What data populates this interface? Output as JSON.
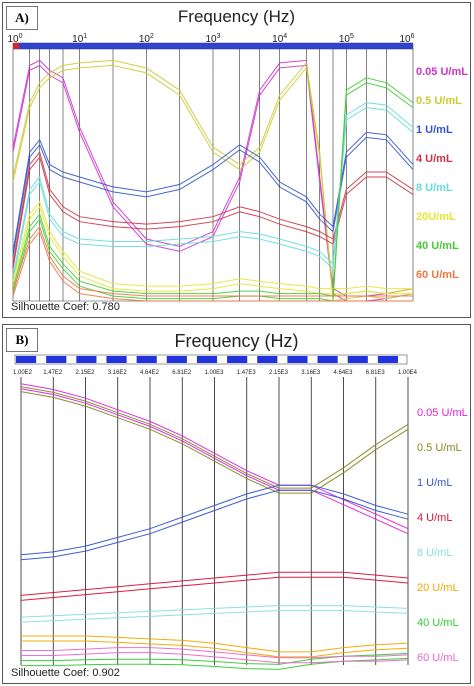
{
  "panels": [
    {
      "tag": "A)",
      "title": "Frequency (Hz)",
      "coef_label": "Silhouette Coef:",
      "coef_value": "0.780",
      "tick_labels": [
        {
          "base": "10",
          "exp": "0"
        },
        {
          "base": "10",
          "exp": "1"
        },
        {
          "base": "10",
          "exp": "2"
        },
        {
          "base": "10",
          "exp": "3"
        },
        {
          "base": "10",
          "exp": "4"
        },
        {
          "base": "10",
          "exp": "5"
        },
        {
          "base": "10",
          "exp": "6"
        }
      ]
    },
    {
      "tag": "B)",
      "title": "Frequency (Hz)",
      "coef_label": "Silhouette Coef:",
      "coef_value": "0.902",
      "tick_labels": [
        "1.00E2",
        "1.47E2",
        "2.15E2",
        "3.16E2",
        "4.64E2",
        "6.81E2",
        "1.00E3",
        "1.47E3",
        "2.15E3",
        "3.16E3",
        "4.64E3",
        "6.81E3",
        "1.00E4"
      ]
    }
  ],
  "legend": [
    {
      "label": "0.05 U/mL",
      "color": "#cc33cc"
    },
    {
      "label": "0.5 U/mL",
      "color": "#cccc33"
    },
    {
      "label": "1 U/mL",
      "color": "#3355cc"
    },
    {
      "label": "4 U/mL",
      "color": "#cc3344"
    },
    {
      "label": "8 U/mL",
      "color": "#66dddd"
    },
    {
      "label": "20U/mL",
      "color": "#e6e633"
    },
    {
      "label": "40 U/mL",
      "color": "#44cc33"
    },
    {
      "label": "60 U/mL",
      "color": "#ee7744"
    }
  ],
  "legend_b": [
    {
      "label": "0.05 U/mL",
      "color": "#dd22dd"
    },
    {
      "label": "0.5 U/mL",
      "color": "#888822"
    },
    {
      "label": "1 U/mL",
      "color": "#3355cc"
    },
    {
      "label": "4 U/mL",
      "color": "#dd1133"
    },
    {
      "label": "8 U/mL",
      "color": "#88dddd"
    },
    {
      "label": "20 U/mL",
      "color": "#eeaa00"
    },
    {
      "label": "40 U/mL",
      "color": "#33cc33"
    },
    {
      "label": "60 U/mL",
      "color": "#ee66cc"
    }
  ],
  "chart_data": [
    {
      "type": "line",
      "title": "Frequency (Hz)",
      "x": [
        0,
        0.25,
        0.4,
        0.55,
        0.75,
        1,
        1.5,
        2,
        2.5,
        3,
        3.4,
        3.7,
        4,
        4.4,
        4.6,
        4.8,
        5,
        5.3,
        5.6,
        6
      ],
      "series": [
        {
          "name": "0.05 U/mL",
          "values": [
            0.62,
            0.95,
            0.97,
            0.93,
            0.9,
            0.7,
            0.4,
            0.25,
            0.22,
            0.28,
            0.5,
            0.85,
            0.96,
            0.97,
            0.5,
            0.05,
            0.02,
            0.02,
            0.03,
            0.05
          ]
        },
        {
          "name": "0.5 U/mL",
          "values": [
            0.5,
            0.8,
            0.88,
            0.92,
            0.95,
            0.96,
            0.97,
            0.94,
            0.85,
            0.62,
            0.55,
            0.62,
            0.83,
            0.96,
            0.6,
            0.02,
            0.03,
            0.04,
            0.03,
            0.05
          ]
        },
        {
          "name": "1 U/mL",
          "values": [
            0.2,
            0.6,
            0.65,
            0.55,
            0.52,
            0.5,
            0.46,
            0.44,
            0.47,
            0.55,
            0.63,
            0.58,
            0.48,
            0.42,
            0.35,
            0.3,
            0.6,
            0.68,
            0.67,
            0.55
          ]
        },
        {
          "name": "4 U/mL",
          "values": [
            0.15,
            0.55,
            0.6,
            0.45,
            0.38,
            0.34,
            0.32,
            0.31,
            0.32,
            0.34,
            0.38,
            0.36,
            0.33,
            0.3,
            0.28,
            0.25,
            0.45,
            0.52,
            0.52,
            0.45
          ]
        },
        {
          "name": "8 U/mL",
          "values": [
            0.1,
            0.45,
            0.5,
            0.35,
            0.28,
            0.25,
            0.24,
            0.24,
            0.25,
            0.26,
            0.28,
            0.27,
            0.25,
            0.22,
            0.2,
            0.15,
            0.75,
            0.8,
            0.79,
            0.7
          ]
        },
        {
          "name": "20U/mL",
          "values": [
            0.08,
            0.35,
            0.4,
            0.28,
            0.2,
            0.12,
            0.07,
            0.06,
            0.06,
            0.07,
            0.09,
            0.08,
            0.07,
            0.06,
            0.05,
            0.05,
            0.05,
            0.06,
            0.05,
            0.05
          ]
        },
        {
          "name": "40 U/mL",
          "values": [
            0.05,
            0.3,
            0.35,
            0.22,
            0.15,
            0.08,
            0.04,
            0.03,
            0.03,
            0.03,
            0.04,
            0.04,
            0.03,
            0.03,
            0.03,
            0.02,
            0.85,
            0.9,
            0.88,
            0.8
          ]
        },
        {
          "name": "60 U/mL",
          "values": [
            0.04,
            0.25,
            0.3,
            0.18,
            0.1,
            0.05,
            0.03,
            0.02,
            0.02,
            0.02,
            0.02,
            0.02,
            0.02,
            0.02,
            0.02,
            0.02,
            0.02,
            0.02,
            0.02,
            0.02
          ]
        }
      ]
    },
    {
      "type": "line",
      "title": "Frequency (Hz)",
      "categories": [
        "1.00E2",
        "1.47E2",
        "2.15E2",
        "3.16E2",
        "4.64E2",
        "6.81E2",
        "1.00E3",
        "1.47E3",
        "2.15E3",
        "3.16E3",
        "4.64E3",
        "6.81E3",
        "1.00E4"
      ],
      "series": [
        {
          "name": "0.05 U/mL",
          "values": [
            0.97,
            0.95,
            0.92,
            0.88,
            0.84,
            0.79,
            0.73,
            0.67,
            0.62,
            0.62,
            0.57,
            0.52,
            0.47
          ]
        },
        {
          "name": "0.5 U/mL",
          "values": [
            0.96,
            0.94,
            0.91,
            0.87,
            0.83,
            0.78,
            0.72,
            0.66,
            0.61,
            0.61,
            0.68,
            0.76,
            0.83
          ]
        },
        {
          "name": "1 U/mL",
          "values": [
            0.38,
            0.39,
            0.41,
            0.44,
            0.47,
            0.51,
            0.55,
            0.59,
            0.62,
            0.62,
            0.59,
            0.55,
            0.52
          ]
        },
        {
          "name": "4 U/mL",
          "values": [
            0.24,
            0.25,
            0.26,
            0.27,
            0.28,
            0.29,
            0.3,
            0.31,
            0.32,
            0.32,
            0.32,
            0.31,
            0.3
          ]
        },
        {
          "name": "8 U/mL",
          "values": [
            0.165,
            0.17,
            0.175,
            0.18,
            0.185,
            0.19,
            0.195,
            0.2,
            0.205,
            0.205,
            0.205,
            0.2,
            0.195
          ]
        },
        {
          "name": "20 U/mL",
          "values": [
            0.1,
            0.1,
            0.1,
            0.095,
            0.09,
            0.085,
            0.075,
            0.06,
            0.045,
            0.045,
            0.06,
            0.07,
            0.075
          ]
        },
        {
          "name": "40 U/mL",
          "values": [
            0.015,
            0.015,
            0.018,
            0.02,
            0.02,
            0.018,
            0.012,
            0.005,
            0.002,
            0.02,
            0.03,
            0.035,
            0.04
          ]
        },
        {
          "name": "60 U/mL",
          "values": [
            0.05,
            0.05,
            0.055,
            0.06,
            0.06,
            0.055,
            0.045,
            0.035,
            0.025,
            0.025,
            0.03,
            0.03,
            0.035
          ]
        }
      ]
    }
  ]
}
